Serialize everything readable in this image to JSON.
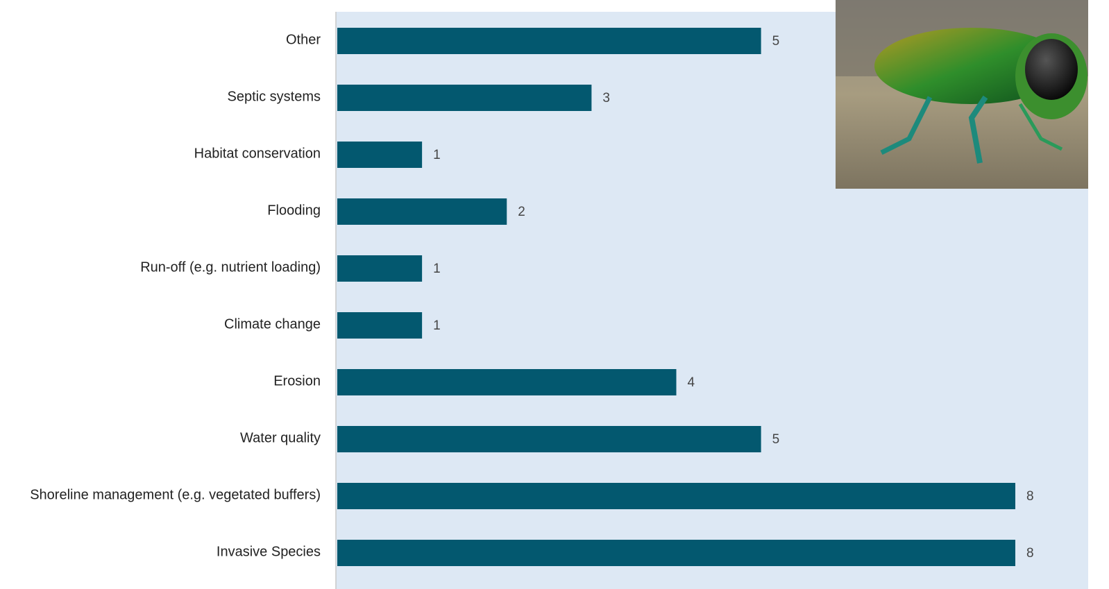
{
  "chart_data": {
    "type": "bar",
    "orientation": "horizontal",
    "categories": [
      "Other",
      "Septic systems",
      "Habitat conservation",
      "Flooding",
      "Run-off (e.g. nutrient loading)",
      "Climate change",
      "Erosion",
      "Water quality",
      "Shoreline management (e.g. vegetated buffers)",
      "Invasive Species"
    ],
    "values": [
      5,
      3,
      1,
      2,
      1,
      1,
      4,
      5,
      8,
      8
    ],
    "color": "#03586f"
  }
}
